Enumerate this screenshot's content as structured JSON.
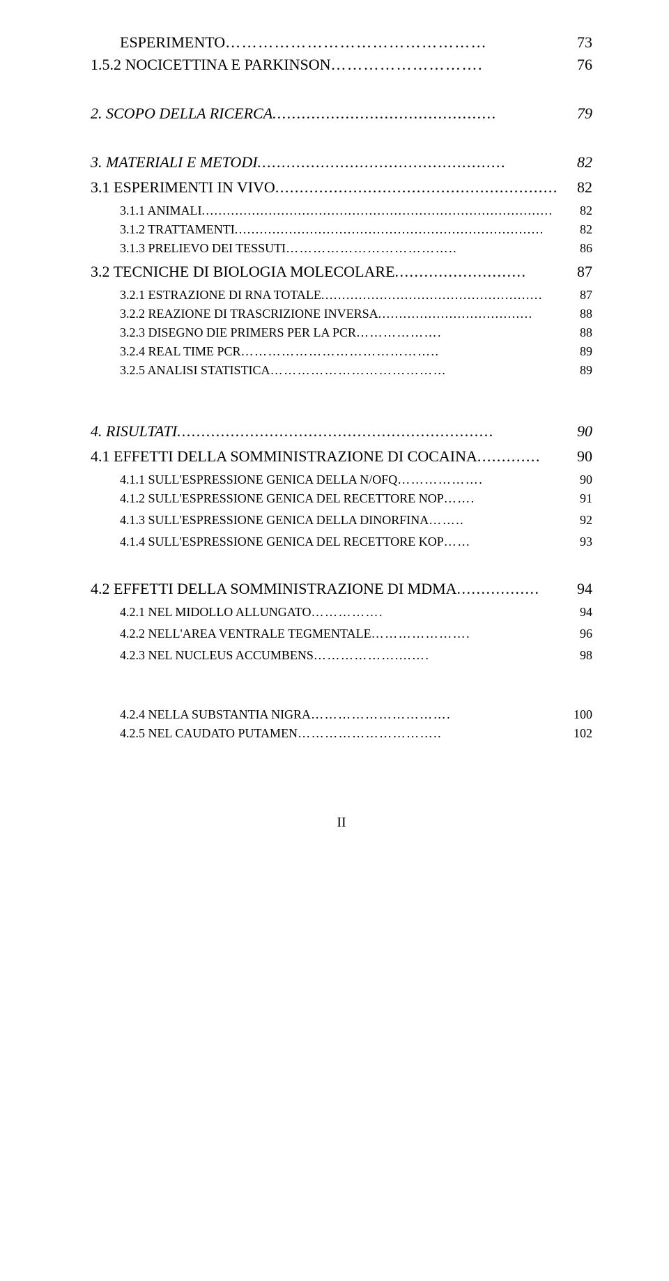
{
  "typography": {
    "font_family": "Times New Roman",
    "title_fontsize": 22,
    "sub_fontsize": 18,
    "color": "#000000",
    "background": "#ffffff"
  },
  "toc": {
    "items": [
      {
        "label": "ESPERIMENTO",
        "page": "73",
        "class": "blk-h2 indent-1",
        "leader": "…………………………………………"
      },
      {
        "label": "1.5.2 NOCICETTINA E PARKINSON",
        "page": "76",
        "class": "blk-h2",
        "leader": "……………………….",
        "after": "sp-lg"
      },
      {
        "label": "2. SCOPO DELLA RICERCA",
        "page": "79",
        "class": "blk-italic-h1",
        "leader": "..............................................",
        "after": "sp-lg"
      },
      {
        "label": "3. MATERIALI E METODI",
        "page": "82",
        "class": "blk-italic-h1",
        "leader": "...................................................",
        "after": "sp-sm"
      },
      {
        "label": "3.1 ESPERIMENTI IN VIVO",
        "page": "82",
        "class": "blk-h2",
        "leader": "..........................................................",
        "after": "sp-sm"
      },
      {
        "label": "3.1.1 ANIMALI",
        "page": "82",
        "class": "blk-sub indent-1",
        "leader": "...................................................................................."
      },
      {
        "label": "3.1.2 TRATTAMENTI",
        "page": "82",
        "class": "blk-sub indent-1",
        "leader": ".........................................................................."
      },
      {
        "label": "3.1.3 PRELIEVO DEI TESSUTI",
        "page": "86",
        "class": "blk-sub indent-1",
        "leader": "………………………………..",
        "after": "sp-sm"
      },
      {
        "label": "3.2 TECNICHE DI BIOLOGIA MOLECOLARE",
        "page": "87",
        "class": "blk-h2",
        "leader": "...........................",
        "after": "sp-sm"
      },
      {
        "label": "3.2.1 ESTRAZIONE DI RNA TOTALE",
        "page": "87",
        "class": "blk-sub indent-1",
        "leader": "....................................................."
      },
      {
        "label": "3.2.2 REAZIONE DI TRASCRIZIONE INVERSA",
        "page": "88",
        "class": "blk-sub indent-1",
        "leader": "....................................."
      },
      {
        "label": "3.2.3 DISEGNO DIE PRIMERS PER LA PCR",
        "page": "88",
        "class": "blk-sub indent-1",
        "leader": "………………."
      },
      {
        "label": "3.2.4 REAL TIME PCR",
        "page": "89",
        "class": "blk-sub indent-1",
        "leader": "…………………………………….."
      },
      {
        "label": "3.2.5 ANALISI STATISTICA",
        "page": "89",
        "class": "blk-sub indent-1",
        "leader": "…………………………………",
        "after": "sp-xl"
      },
      {
        "label": "4. RISULTATI",
        "page": "90",
        "class": "blk-italic-h1",
        "leader": ".................................................................",
        "after": "sp-sm"
      },
      {
        "label": "4.1 EFFETTI DELLA SOMMINISTRAZIONE DI COCAINA",
        "page": "90",
        "class": "blk-h2",
        "leader": ".............",
        "after": "sp-sm"
      },
      {
        "label": "4.1.1 SULL'ESPRESSIONE GENICA DELLA N/OFQ",
        "page": "90",
        "class": "blk-sub indent-1",
        "leader": "………………."
      },
      {
        "label": "4.1.2 SULL'ESPRESSIONE GENICA DEL RECETTORE NOP",
        "page": "91",
        "class": "blk-sub indent-1",
        "leader": "…….",
        "after": "sp-sm"
      },
      {
        "label": "4.1.3 SULL'ESPRESSIONE GENICA DELLA DINORFINA",
        "page": "92",
        "class": "blk-sub indent-1",
        "leader": "……..",
        "pad": "   ",
        "after": "sp-sm"
      },
      {
        "label": "4.1.4 SULL'ESPRESSIONE GENICA DEL RECETTORE KOP",
        "page": "93",
        "class": "blk-sub indent-1",
        "leader": "……",
        "pad": "   ",
        "after": "sp-lg"
      },
      {
        "label": "4.2 EFFETTI DELLA SOMMINISTRAZIONE DI MDMA",
        "page": "94",
        "class": "blk-h2",
        "leader": ".................",
        "after": "sp-sm"
      },
      {
        "label": "4.2.1 NEL MIDOLLO ALLUNGATO",
        "page": "94",
        "class": "blk-sub indent-1",
        "leader": "…………….",
        "pad": "                    ",
        "after": "sp-sm"
      },
      {
        "label": "4.2.2 NELL'AREA VENTRALE TEGMENTALE",
        "page": "96",
        "class": "blk-sub indent-1",
        "leader": "………………….",
        "after": "sp-sm"
      },
      {
        "label": "4.2.3 NEL NUCLEUS ACCUMBENS",
        "page": "98",
        "class": "blk-sub indent-1",
        "leader": "………………....….",
        "after": "sp-xl"
      },
      {
        "label": "4.2.4 NELLA SUBSTANTIA NIGRA",
        "page": "100",
        "class": "blk-sub indent-1",
        "leader": "…………………………."
      },
      {
        "label": "4.2.5 NEL CAUDATO PUTAMEN",
        "page": "102",
        "class": "blk-sub indent-1",
        "leader": "………………………….."
      }
    ]
  },
  "footer": {
    "page_num": "II"
  }
}
